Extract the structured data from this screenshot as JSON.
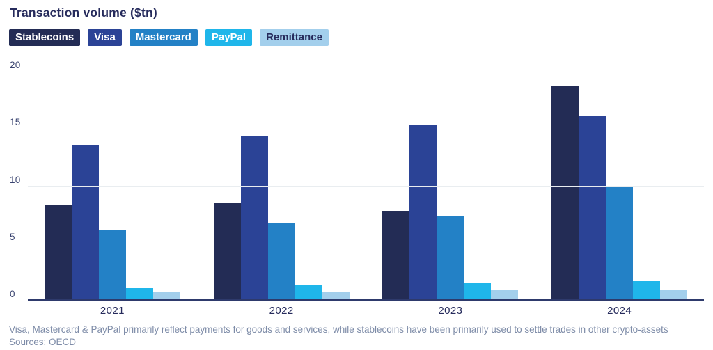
{
  "page": {
    "title": "Transaction volume ($tn)",
    "footnote": "Visa, Mastercard & PayPal primarily reflect payments for goods and services, while stablecoins have been primarily used to settle trades in other crypto-assets",
    "sources": "Sources: OECD"
  },
  "chart_data": {
    "type": "bar",
    "title": "Transaction volume ($tn)",
    "categories": [
      "2021",
      "2022",
      "2023",
      "2024"
    ],
    "series": [
      {
        "name": "Stablecoins",
        "color": "#232C55",
        "legend_text_color": "#FFFFFF",
        "values": [
          8.2,
          8.4,
          7.7,
          18.6
        ]
      },
      {
        "name": "Visa",
        "color": "#2B4396",
        "legend_text_color": "#FFFFFF",
        "values": [
          13.5,
          14.3,
          15.2,
          16.0
        ]
      },
      {
        "name": "Mastercard",
        "color": "#2381C6",
        "legend_text_color": "#FFFFFF",
        "values": [
          6.0,
          6.7,
          7.3,
          9.8
        ]
      },
      {
        "name": "PayPal",
        "color": "#1FB6EA",
        "legend_text_color": "#FFFFFF",
        "values": [
          1.0,
          1.2,
          1.4,
          1.6
        ]
      },
      {
        "name": "Remittance",
        "color": "#A3CFEC",
        "legend_text_color": "#262B5C",
        "values": [
          0.7,
          0.7,
          0.8,
          0.8
        ]
      }
    ],
    "xlabel": "",
    "ylabel": "",
    "ylim": [
      0,
      20
    ],
    "y_ticks": [
      0,
      5,
      10,
      15,
      20
    ],
    "grid": "horizontal",
    "legend_position": "top"
  },
  "colors": {
    "title_text": "#262B5C",
    "tick_text": "#3A4470",
    "axis_line": "#2E3A6C",
    "gridline": "#E9EDF0",
    "footnote_text": "#7E8CA8",
    "background": "#FFFFFF"
  }
}
